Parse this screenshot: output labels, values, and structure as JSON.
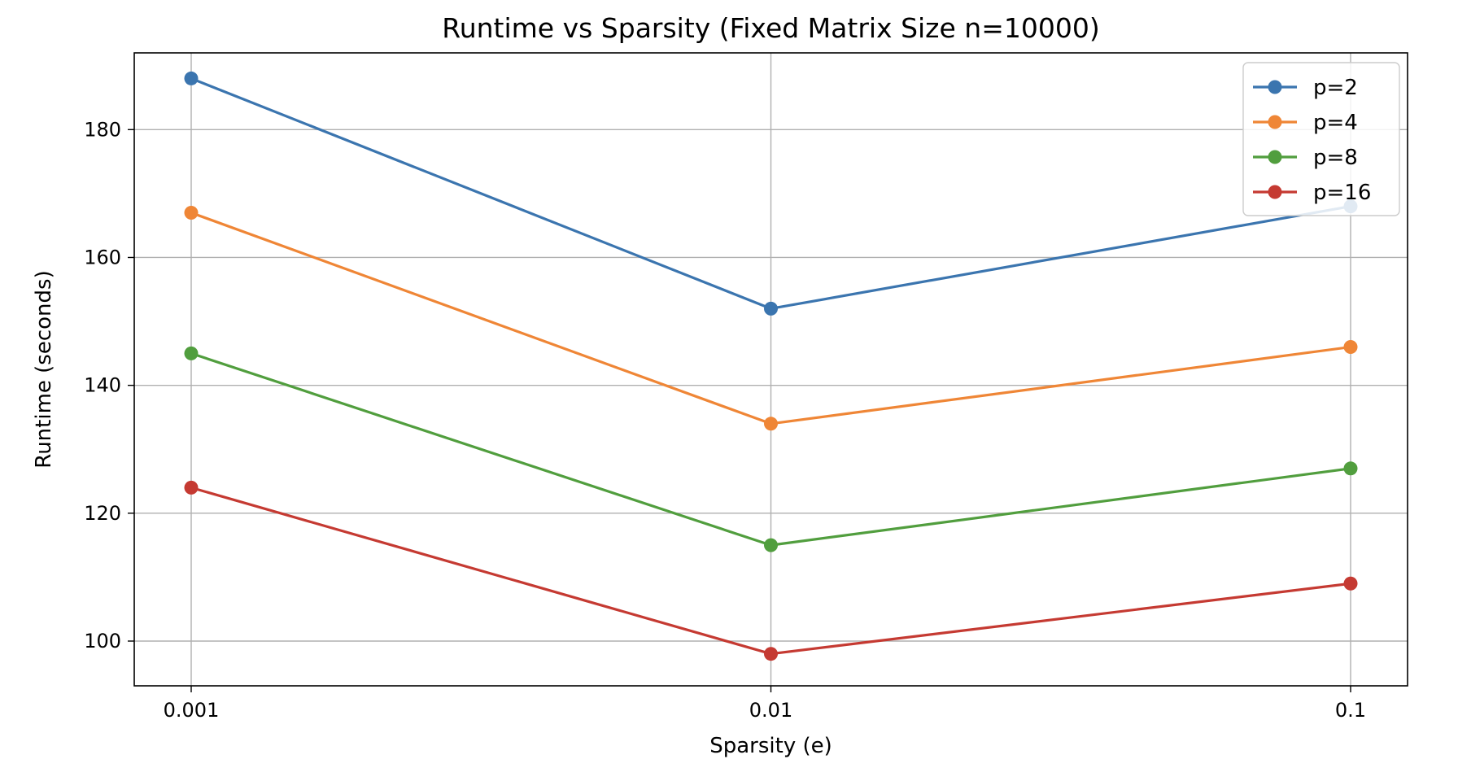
{
  "chart_data": {
    "type": "line",
    "title": "Runtime vs Sparsity (Fixed Matrix Size n=10000)",
    "xlabel": "Sparsity (e)",
    "ylabel": "Runtime (seconds)",
    "x_scale": "log",
    "x": [
      0.001,
      0.01,
      0.1
    ],
    "x_tick_labels": [
      "0.001",
      "0.01",
      "0.1"
    ],
    "y_ticks": [
      100,
      120,
      140,
      160,
      180
    ],
    "ylim": [
      93,
      192
    ],
    "grid": true,
    "legend_position": "top-right",
    "series": [
      {
        "name": "p=2",
        "color": "#3b75af",
        "values": [
          188,
          152,
          168
        ]
      },
      {
        "name": "p=4",
        "color": "#ef8636",
        "values": [
          167,
          134,
          146
        ]
      },
      {
        "name": "p=8",
        "color": "#519e3e",
        "values": [
          145,
          115,
          127
        ]
      },
      {
        "name": "p=16",
        "color": "#c53a32",
        "values": [
          124,
          98,
          109
        ]
      }
    ]
  }
}
